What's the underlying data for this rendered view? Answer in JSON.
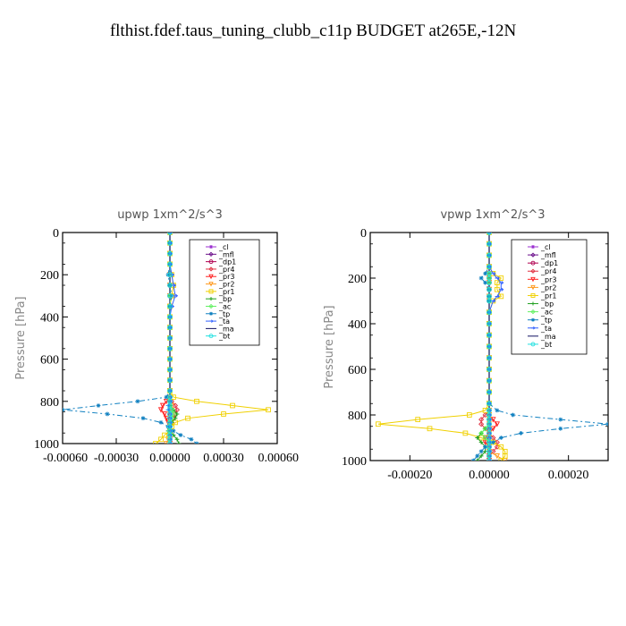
{
  "page": {
    "title": "flthist.fdef.taus_tuning_clubb_c11p  BUDGET at265E,-12N"
  },
  "chart_data": [
    {
      "type": "line",
      "title": "upwp   1xm^2/s^3",
      "xlabel": "",
      "ylabel": "Pressure [hPa]",
      "xlim": [
        -0.0006,
        0.0006
      ],
      "ylim": [
        1000,
        0
      ],
      "xticks": [
        -0.0006,
        -0.0003,
        0.0,
        0.0003,
        0.0006
      ],
      "xtick_labels": [
        "-0.00060",
        "-0.00030",
        "0.00000",
        "0.00030",
        "0.00060"
      ],
      "yticks": [
        0,
        200,
        400,
        600,
        800,
        1000
      ],
      "ytick_labels": [
        "0",
        "200",
        "400",
        "600",
        "800",
        "1000"
      ],
      "legend_position": "top-right",
      "legend": [
        "_cl",
        "_mfl",
        "_dp1",
        "_pr4",
        "_pr3",
        "_pr2",
        "_pr1",
        "_bp",
        "_ac",
        "_tp",
        "_ta",
        "_ma",
        "_bt"
      ],
      "p": [
        0,
        50,
        100,
        150,
        200,
        250,
        300,
        350,
        400,
        450,
        500,
        550,
        600,
        650,
        700,
        750,
        780,
        800,
        820,
        840,
        860,
        880,
        900,
        920,
        940,
        960,
        980,
        1000
      ],
      "series": [
        {
          "name": "_cl",
          "color": "#9b30d0",
          "marker": "star",
          "dash": "",
          "values": [
            0,
            0,
            0,
            0,
            0,
            0,
            0,
            0,
            0,
            0,
            0,
            0,
            0,
            0,
            0,
            0,
            0,
            0,
            0,
            0,
            0,
            0,
            0,
            0,
            0,
            0,
            0,
            0
          ]
        },
        {
          "name": "_mfl",
          "color": "#6a0d8a",
          "marker": "diamond",
          "dash": "",
          "values": [
            0,
            0,
            0,
            0,
            0,
            0,
            0,
            0,
            0,
            0,
            0,
            0,
            0,
            0,
            0,
            0,
            0,
            0,
            0,
            0,
            0,
            0,
            0,
            0,
            0,
            0,
            0,
            0
          ]
        },
        {
          "name": "_dp1",
          "color": "#b00050",
          "marker": "circle",
          "dash": "",
          "values": [
            0,
            0,
            0,
            0,
            0,
            0,
            0,
            0,
            0,
            0,
            0,
            0,
            0,
            0,
            0,
            0,
            0,
            0,
            0,
            0,
            0,
            0,
            0,
            0,
            0,
            0,
            0,
            0
          ]
        },
        {
          "name": "_pr4",
          "color": "#e03040",
          "marker": "diamond",
          "dash": "",
          "values": [
            0,
            0,
            0,
            0,
            0,
            0,
            0,
            0,
            0,
            0,
            0,
            0,
            0,
            0,
            0,
            0,
            0,
            1e-05,
            3e-05,
            4e-05,
            3e-05,
            2e-05,
            1e-05,
            0,
            0,
            0,
            0,
            0
          ]
        },
        {
          "name": "_pr3",
          "color": "#ff2020",
          "marker": "tri",
          "dash": "",
          "values": [
            0,
            0,
            0,
            0,
            0,
            0,
            0,
            0,
            0,
            0,
            0,
            0,
            0,
            0,
            0,
            0,
            0,
            -2e-05,
            -4e-05,
            -5e-05,
            -3e-05,
            -2e-05,
            -1e-05,
            0,
            0,
            0,
            0,
            0
          ]
        },
        {
          "name": "_pr2",
          "color": "#ff9a20",
          "marker": "tri",
          "dash": "",
          "values": [
            0,
            0,
            0,
            0,
            0,
            0,
            0,
            0,
            0,
            0,
            0,
            0,
            0,
            0,
            0,
            0,
            0,
            0,
            1e-05,
            1e-05,
            0,
            0,
            0,
            0,
            0,
            0,
            -1e-05,
            -2e-05
          ]
        },
        {
          "name": "_pr1",
          "color": "#f0d000",
          "marker": "square",
          "dash": "",
          "values": [
            0,
            0,
            0,
            0,
            1e-05,
            2e-05,
            1e-05,
            0,
            0,
            0,
            0,
            0,
            0,
            0,
            0,
            0,
            2e-05,
            0.00015,
            0.00035,
            0.00055,
            0.0003,
            0.0001,
            3e-05,
            1e-05,
            0,
            -3e-05,
            -5e-05,
            -8e-05
          ]
        },
        {
          "name": "_bp",
          "color": "#20a020",
          "marker": "cross",
          "dash": "",
          "values": [
            0,
            0,
            0,
            0,
            0,
            0,
            0,
            0,
            0,
            0,
            0,
            0,
            0,
            0,
            0,
            0,
            0,
            0,
            0,
            2e-05,
            4e-05,
            3e-05,
            1e-05,
            0,
            -1e-05,
            2e-05,
            4e-05,
            5e-05
          ]
        },
        {
          "name": "_ac",
          "color": "#60f060",
          "marker": "diamond",
          "dash": "",
          "values": [
            0,
            0,
            0,
            0,
            0,
            0,
            0,
            0,
            0,
            0,
            0,
            0,
            0,
            0,
            0,
            0,
            0,
            0,
            0,
            1e-05,
            2e-05,
            1e-05,
            0,
            0,
            0,
            0,
            0,
            0
          ]
        },
        {
          "name": "_tp",
          "color": "#1080c0",
          "marker": "star",
          "dash": "6,3,2,3",
          "values": [
            0,
            0,
            0,
            0,
            -1e-05,
            0,
            1e-05,
            0,
            0,
            0,
            0,
            0,
            0,
            0,
            0,
            0,
            -2e-05,
            -0.00018,
            -0.0004,
            -0.0006,
            -0.00035,
            -0.00015,
            -5e-05,
            -1e-05,
            2e-05,
            6e-05,
            0.00012,
            0.00015
          ]
        },
        {
          "name": "_ta",
          "color": "#3060ff",
          "marker": "arrow",
          "dash": "",
          "values": [
            0,
            0,
            0,
            0,
            1e-05,
            2e-05,
            3e-05,
            1e-05,
            0,
            0,
            0,
            0,
            0,
            0,
            0,
            0,
            0,
            0,
            -1e-05,
            -1e-05,
            0,
            0,
            0,
            0,
            0,
            0,
            0,
            0
          ]
        },
        {
          "name": "_ma",
          "color": "#101060",
          "marker": "none",
          "dash": "",
          "values": [
            0,
            0,
            0,
            0,
            0,
            0,
            0,
            0,
            0,
            0,
            0,
            0,
            0,
            0,
            0,
            0,
            0,
            0,
            0,
            0,
            0,
            0,
            0,
            0,
            0,
            0,
            0,
            0
          ]
        },
        {
          "name": "_bt",
          "color": "#20e0e0",
          "marker": "circle",
          "dash": "",
          "values": [
            0,
            0,
            0,
            0,
            0,
            0,
            0,
            0,
            0,
            0,
            0,
            0,
            0,
            0,
            0,
            0,
            0,
            0,
            0,
            0,
            0,
            0,
            0,
            0,
            0,
            0,
            0,
            0
          ]
        }
      ]
    },
    {
      "type": "line",
      "title": "vpwp   1xm^2/s^3",
      "xlabel": "",
      "ylabel": "Pressure [hPa]",
      "xlim": [
        -0.0003,
        0.0003
      ],
      "ylim": [
        1000,
        0
      ],
      "xticks": [
        -0.0002,
        0.0,
        0.0002
      ],
      "xtick_labels": [
        "-0.00020",
        "0.00000",
        "0.00020"
      ],
      "yticks": [
        0,
        200,
        400,
        600,
        800,
        1000
      ],
      "ytick_labels": [
        "0",
        "200",
        "400",
        "600",
        "800",
        "1000"
      ],
      "legend_position": "top-right",
      "legend": [
        "_cl",
        "_mfl",
        "_dp1",
        "_pr4",
        "_pr3",
        "_pr2",
        "_pr1",
        "_bp",
        "_ac",
        "_tp",
        "_ta",
        "_ma",
        "_bt"
      ],
      "p": [
        0,
        50,
        100,
        150,
        180,
        200,
        220,
        250,
        280,
        300,
        350,
        400,
        450,
        500,
        550,
        600,
        650,
        700,
        750,
        780,
        800,
        820,
        840,
        860,
        880,
        900,
        920,
        940,
        960,
        980,
        1000
      ],
      "series": [
        {
          "name": "_cl",
          "color": "#9b30d0",
          "marker": "star",
          "dash": "",
          "values": [
            0,
            0,
            0,
            0,
            0,
            0,
            0,
            0,
            0,
            0,
            0,
            0,
            0,
            0,
            0,
            0,
            0,
            0,
            0,
            0,
            0,
            0,
            0,
            0,
            0,
            0,
            0,
            0,
            0,
            0,
            0
          ]
        },
        {
          "name": "_mfl",
          "color": "#6a0d8a",
          "marker": "diamond",
          "dash": "",
          "values": [
            0,
            0,
            0,
            0,
            0,
            0,
            0,
            0,
            0,
            0,
            0,
            0,
            0,
            0,
            0,
            0,
            0,
            0,
            0,
            0,
            0,
            0,
            0,
            0,
            0,
            0,
            0,
            0,
            0,
            0,
            0
          ]
        },
        {
          "name": "_dp1",
          "color": "#b00050",
          "marker": "circle",
          "dash": "",
          "values": [
            0,
            0,
            0,
            0,
            0,
            0,
            0,
            0,
            0,
            0,
            0,
            0,
            0,
            0,
            0,
            0,
            0,
            0,
            0,
            0,
            0,
            0,
            0,
            0,
            0,
            0,
            0,
            0,
            0,
            0,
            0
          ]
        },
        {
          "name": "_pr4",
          "color": "#e03040",
          "marker": "diamond",
          "dash": "",
          "values": [
            0,
            0,
            0,
            0,
            0,
            0,
            0,
            0,
            0,
            0,
            0,
            0,
            0,
            0,
            0,
            0,
            0,
            0,
            0,
            0,
            -1e-05,
            -2e-05,
            -2e-05,
            -1e-05,
            0,
            1e-05,
            2e-05,
            2e-05,
            1e-05,
            0,
            0
          ]
        },
        {
          "name": "_pr3",
          "color": "#ff2020",
          "marker": "tri",
          "dash": "",
          "values": [
            0,
            0,
            0,
            0,
            0,
            0,
            0,
            0,
            0,
            0,
            0,
            0,
            0,
            0,
            0,
            0,
            0,
            0,
            0,
            0,
            0,
            1e-05,
            2e-05,
            1e-05,
            0,
            -1e-05,
            -1e-05,
            0,
            0,
            0,
            0
          ]
        },
        {
          "name": "_pr2",
          "color": "#ff9a20",
          "marker": "tri",
          "dash": "",
          "values": [
            0,
            0,
            0,
            0,
            0,
            0,
            0,
            0,
            0,
            0,
            0,
            0,
            0,
            0,
            0,
            0,
            0,
            0,
            0,
            0,
            0,
            0,
            0,
            0,
            0,
            0,
            0,
            0,
            0,
            2e-05,
            4e-05
          ]
        },
        {
          "name": "_pr1",
          "color": "#f0d000",
          "marker": "square",
          "dash": "",
          "values": [
            0,
            0,
            0,
            0,
            1e-05,
            3e-05,
            2e-05,
            2e-05,
            3e-05,
            1e-05,
            0,
            0,
            0,
            0,
            0,
            0,
            0,
            0,
            0,
            -1e-05,
            -5e-05,
            -0.00018,
            -0.00028,
            -0.00015,
            -6e-05,
            -2e-05,
            1e-05,
            3e-05,
            4e-05,
            4e-05,
            3e-05
          ]
        },
        {
          "name": "_bp",
          "color": "#20a020",
          "marker": "cross",
          "dash": "",
          "values": [
            0,
            0,
            0,
            0,
            0,
            0,
            0,
            0,
            0,
            0,
            0,
            0,
            0,
            0,
            0,
            0,
            0,
            0,
            0,
            0,
            0,
            0,
            0,
            -1e-05,
            -2e-05,
            -3e-05,
            -2e-05,
            -1e-05,
            -1e-05,
            -2e-05,
            -3e-05
          ]
        },
        {
          "name": "_ac",
          "color": "#60f060",
          "marker": "diamond",
          "dash": "",
          "values": [
            0,
            0,
            0,
            0,
            0,
            0,
            0,
            0,
            0,
            0,
            0,
            0,
            0,
            0,
            0,
            0,
            0,
            0,
            0,
            0,
            0,
            0,
            0,
            -1e-05,
            -2e-05,
            -1e-05,
            0,
            0,
            0,
            0,
            0
          ]
        },
        {
          "name": "_tp",
          "color": "#1080c0",
          "marker": "star",
          "dash": "6,3,2,3",
          "values": [
            0,
            0,
            0,
            0,
            -1e-05,
            -2e-05,
            -1e-05,
            0,
            0,
            0,
            0,
            0,
            0,
            0,
            0,
            0,
            0,
            0,
            0,
            2e-05,
            6e-05,
            0.00018,
            0.0003,
            0.00018,
            8e-05,
            3e-05,
            1e-05,
            -1e-05,
            -2e-05,
            -3e-05,
            -4e-05
          ]
        },
        {
          "name": "_ta",
          "color": "#3060ff",
          "marker": "arrow",
          "dash": "",
          "values": [
            0,
            0,
            0,
            0,
            1e-05,
            2e-05,
            3e-05,
            3e-05,
            2e-05,
            1e-05,
            0,
            0,
            0,
            0,
            0,
            0,
            0,
            0,
            0,
            0,
            0,
            0,
            0,
            0,
            0,
            0,
            0,
            0,
            0,
            0,
            0
          ]
        },
        {
          "name": "_ma",
          "color": "#101060",
          "marker": "none",
          "dash": "",
          "values": [
            0,
            0,
            0,
            0,
            0,
            0,
            0,
            0,
            0,
            0,
            0,
            0,
            0,
            0,
            0,
            0,
            0,
            0,
            0,
            0,
            0,
            0,
            0,
            0,
            0,
            0,
            0,
            0,
            0,
            0,
            0
          ]
        },
        {
          "name": "_bt",
          "color": "#20e0e0",
          "marker": "circle",
          "dash": "",
          "values": [
            0,
            0,
            0,
            0,
            0,
            0,
            0,
            0,
            0,
            0,
            0,
            0,
            0,
            0,
            0,
            0,
            0,
            0,
            0,
            0,
            0,
            0,
            0,
            0,
            0,
            0,
            0,
            0,
            0,
            0,
            0
          ]
        }
      ]
    }
  ]
}
